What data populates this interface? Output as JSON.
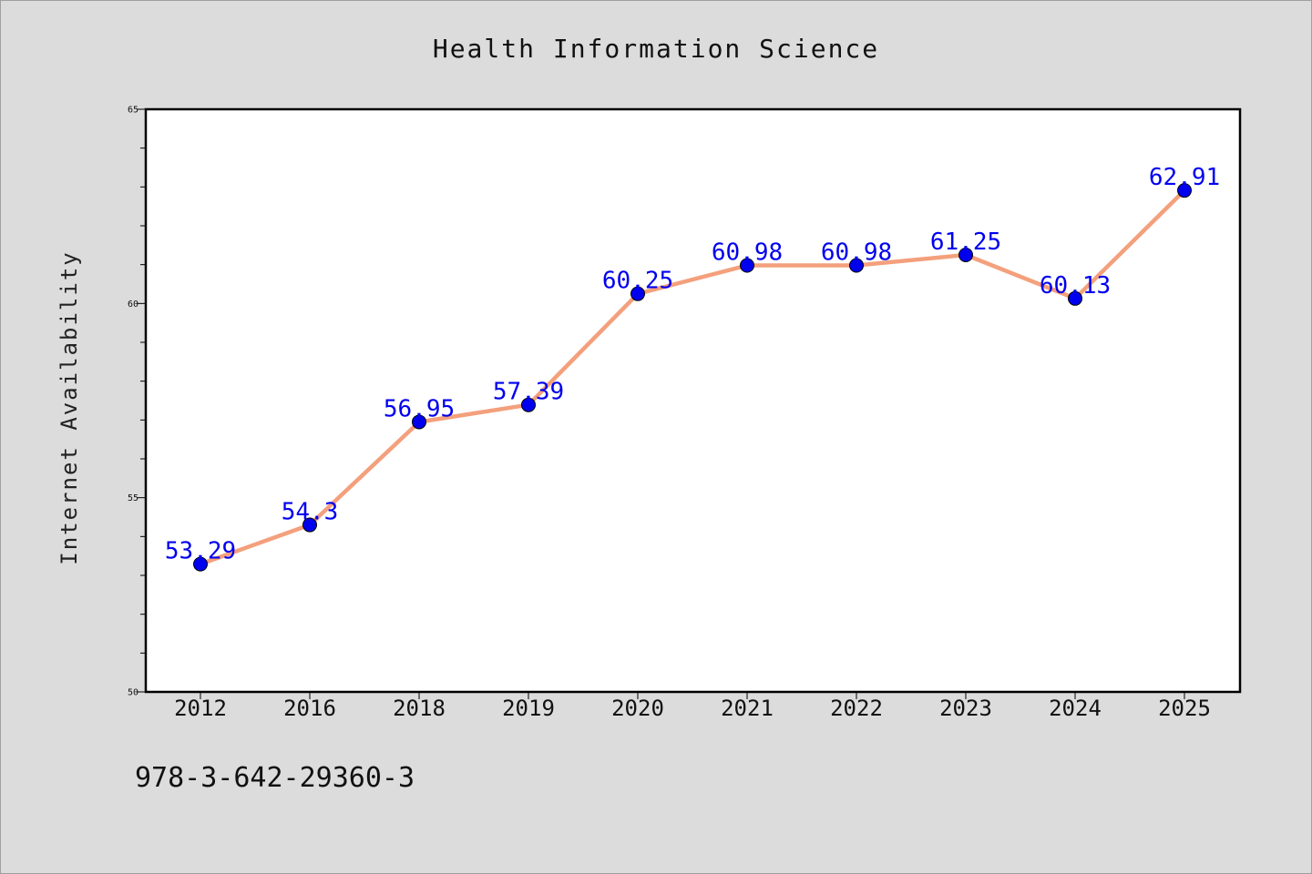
{
  "chart_data": {
    "type": "line",
    "title": "Health Information Science",
    "xlabel": "",
    "ylabel": "Internet Availability",
    "categories": [
      "2012",
      "2016",
      "2018",
      "2019",
      "2020",
      "2021",
      "2022",
      "2023",
      "2024",
      "2025"
    ],
    "values": [
      53.29,
      54.3,
      56.95,
      57.39,
      60.25,
      60.98,
      60.98,
      61.25,
      60.13,
      62.91
    ],
    "data_labels": [
      "53.29",
      "54.3",
      "56.95",
      "57.39",
      "60.25",
      "60.98",
      "60.98",
      "61.25",
      "60.13",
      "62.91"
    ],
    "ylim": [
      50,
      65
    ],
    "yticks": [
      "50",
      "55",
      "60",
      "65"
    ],
    "grid": false,
    "legend": "none",
    "colors": {
      "line": "#f4a07c",
      "marker": "#0000ee",
      "label": "#0000ee",
      "background": "#dcdcdc",
      "plot_background": "#ffffff"
    }
  },
  "footer": {
    "isbn": "978-3-642-29360-3"
  }
}
